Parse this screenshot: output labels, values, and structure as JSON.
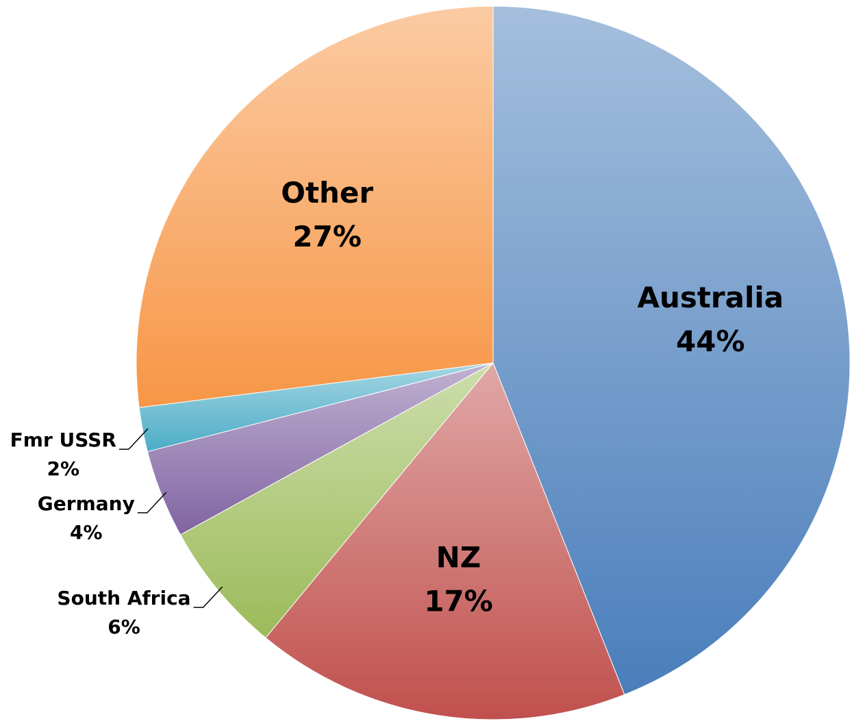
{
  "chart_data": {
    "type": "pie",
    "categories": [
      "Australia",
      "NZ",
      "South Africa",
      "Germany",
      "Fmr USSR",
      "Other"
    ],
    "values": [
      44,
      17,
      6,
      4,
      2,
      27
    ],
    "value_labels": [
      "44%",
      "17%",
      "6%",
      "4%",
      "2%",
      "27%"
    ],
    "colors": [
      "#4a7ebb",
      "#c0504d",
      "#9bbb59",
      "#8064a2",
      "#4bacc6",
      "#f79646"
    ]
  }
}
